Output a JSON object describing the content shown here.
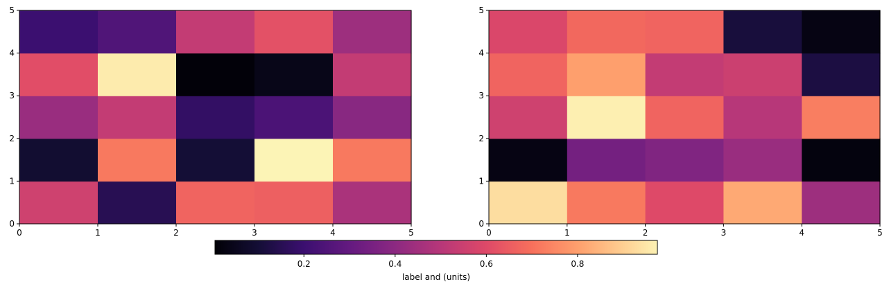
{
  "chart_data": [
    {
      "type": "heatmap",
      "title": "",
      "xlabel": "",
      "ylabel": "",
      "xlim": [
        0,
        5
      ],
      "ylim": [
        0,
        5
      ],
      "xticks": [
        "0",
        "1",
        "2",
        "3",
        "4",
        "5"
      ],
      "yticks": [
        "0",
        "1",
        "2",
        "3",
        "4",
        "5"
      ],
      "values": [
        [
          0.56,
          0.15,
          0.67,
          0.66,
          0.47
        ],
        [
          0.09,
          0.72,
          0.1,
          0.98,
          0.72
        ],
        [
          0.43,
          0.53,
          0.18,
          0.24,
          0.39
        ],
        [
          0.61,
          0.96,
          0.01,
          0.04,
          0.53
        ],
        [
          0.2,
          0.25,
          0.53,
          0.62,
          0.44
        ]
      ]
    },
    {
      "type": "heatmap",
      "title": "",
      "xlabel": "",
      "ylabel": "",
      "xlim": [
        0,
        5
      ],
      "ylim": [
        0,
        5
      ],
      "xticks": [
        "0",
        "1",
        "2",
        "3",
        "4",
        "5"
      ],
      "yticks": [
        "0",
        "1",
        "2",
        "3",
        "4",
        "5"
      ],
      "values": [
        [
          0.93,
          0.72,
          0.6,
          0.82,
          0.44
        ],
        [
          0.03,
          0.34,
          0.37,
          0.43,
          0.02
        ],
        [
          0.56,
          0.97,
          0.67,
          0.5,
          0.73
        ],
        [
          0.67,
          0.8,
          0.53,
          0.55,
          0.12
        ],
        [
          0.59,
          0.68,
          0.67,
          0.11,
          0.03
        ]
      ]
    }
  ],
  "colorbar": {
    "label": "label and (units)",
    "vmin": 0.0,
    "vmax": 1.0,
    "colormap": "magma",
    "ticks": [
      {
        "value": 0.2,
        "label": "0.2"
      },
      {
        "value": 0.4,
        "label": "0.4"
      },
      {
        "value": 0.6,
        "label": "0.6"
      },
      {
        "value": 0.8,
        "label": "0.8"
      }
    ]
  }
}
